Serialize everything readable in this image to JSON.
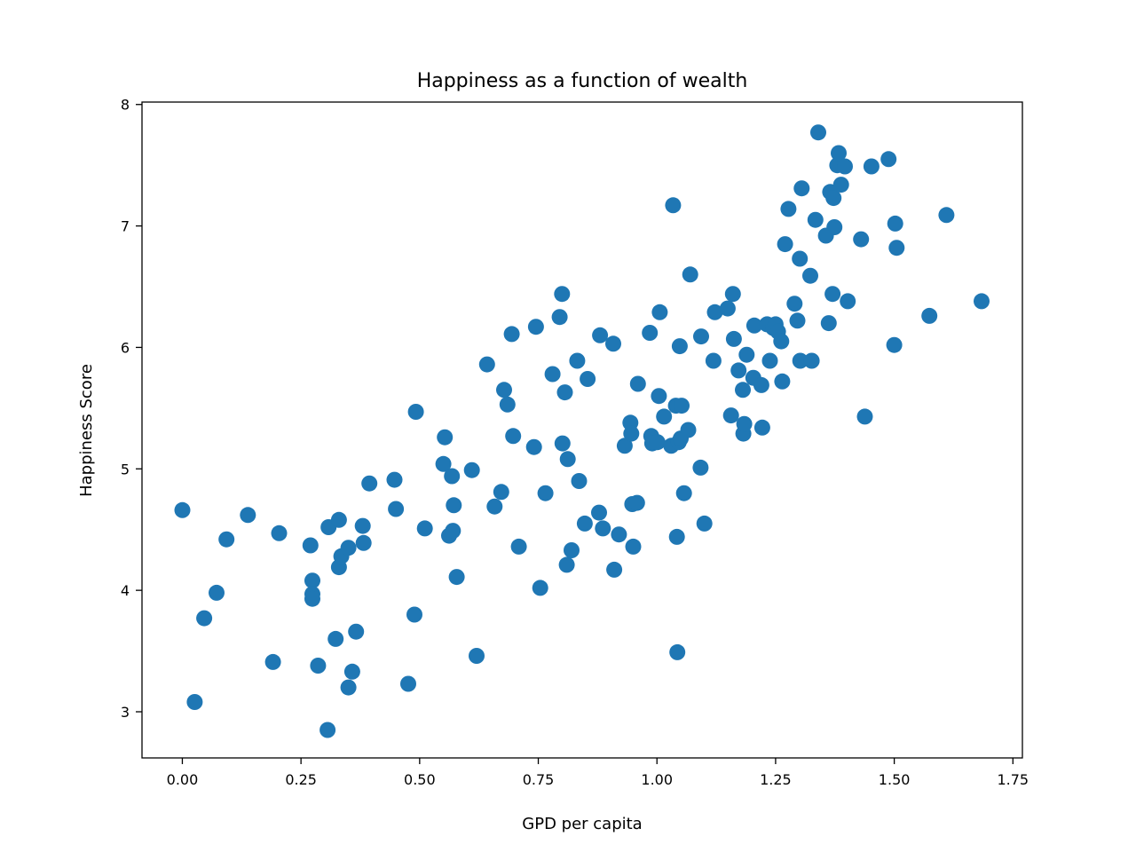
{
  "chart_data": {
    "type": "scatter",
    "title": "Happiness as a function of wealth",
    "xlabel": "GPD per capita",
    "ylabel": "Happiness Score",
    "xlim": [
      -0.085,
      1.77
    ],
    "ylim": [
      2.62,
      8.02
    ],
    "xticks": [
      0.0,
      0.25,
      0.5,
      0.75,
      1.0,
      1.25,
      1.5,
      1.75
    ],
    "xtick_labels": [
      "0.00",
      "0.25",
      "0.50",
      "0.75",
      "1.00",
      "1.25",
      "1.50",
      "1.75"
    ],
    "yticks": [
      3,
      4,
      5,
      6,
      7,
      8
    ],
    "ytick_labels": [
      "3",
      "4",
      "5",
      "6",
      "7",
      "8"
    ],
    "grid": false,
    "marker_color": "#1f77b4",
    "points": [
      [
        0.0,
        4.66
      ],
      [
        0.026,
        3.08
      ],
      [
        0.046,
        3.77
      ],
      [
        0.072,
        3.98
      ],
      [
        0.093,
        4.42
      ],
      [
        0.138,
        4.62
      ],
      [
        0.191,
        3.41
      ],
      [
        0.204,
        4.47
      ],
      [
        0.27,
        4.37
      ],
      [
        0.274,
        4.08
      ],
      [
        0.274,
        3.97
      ],
      [
        0.274,
        3.93
      ],
      [
        0.286,
        3.38
      ],
      [
        0.306,
        2.85
      ],
      [
        0.308,
        4.52
      ],
      [
        0.323,
        3.6
      ],
      [
        0.33,
        4.58
      ],
      [
        0.33,
        4.19
      ],
      [
        0.335,
        4.28
      ],
      [
        0.35,
        4.35
      ],
      [
        0.35,
        3.2
      ],
      [
        0.358,
        3.33
      ],
      [
        0.366,
        3.66
      ],
      [
        0.38,
        4.53
      ],
      [
        0.382,
        4.39
      ],
      [
        0.394,
        4.88
      ],
      [
        0.447,
        4.91
      ],
      [
        0.45,
        4.67
      ],
      [
        0.476,
        3.23
      ],
      [
        0.489,
        3.8
      ],
      [
        0.492,
        5.47
      ],
      [
        0.511,
        4.51
      ],
      [
        0.55,
        5.04
      ],
      [
        0.553,
        5.26
      ],
      [
        0.562,
        4.45
      ],
      [
        0.568,
        4.94
      ],
      [
        0.57,
        4.49
      ],
      [
        0.572,
        4.7
      ],
      [
        0.578,
        4.11
      ],
      [
        0.61,
        4.99
      ],
      [
        0.62,
        3.46
      ],
      [
        0.642,
        5.86
      ],
      [
        0.658,
        4.69
      ],
      [
        0.672,
        4.81
      ],
      [
        0.678,
        5.65
      ],
      [
        0.685,
        5.53
      ],
      [
        0.694,
        6.11
      ],
      [
        0.697,
        5.27
      ],
      [
        0.709,
        4.36
      ],
      [
        0.741,
        5.18
      ],
      [
        0.745,
        6.17
      ],
      [
        0.754,
        4.02
      ],
      [
        0.765,
        4.8
      ],
      [
        0.78,
        5.78
      ],
      [
        0.795,
        6.25
      ],
      [
        0.8,
        6.44
      ],
      [
        0.801,
        5.21
      ],
      [
        0.806,
        5.63
      ],
      [
        0.81,
        4.21
      ],
      [
        0.812,
        5.08
      ],
      [
        0.82,
        4.33
      ],
      [
        0.832,
        5.89
      ],
      [
        0.836,
        4.9
      ],
      [
        0.848,
        4.55
      ],
      [
        0.854,
        5.74
      ],
      [
        0.878,
        4.64
      ],
      [
        0.88,
        6.1
      ],
      [
        0.886,
        4.51
      ],
      [
        0.908,
        6.03
      ],
      [
        0.91,
        4.17
      ],
      [
        0.92,
        4.46
      ],
      [
        0.932,
        5.19
      ],
      [
        0.944,
        5.38
      ],
      [
        0.946,
        5.29
      ],
      [
        0.948,
        4.71
      ],
      [
        0.95,
        4.36
      ],
      [
        0.958,
        4.72
      ],
      [
        0.96,
        5.7
      ],
      [
        0.985,
        6.12
      ],
      [
        0.988,
        5.27
      ],
      [
        0.99,
        5.21
      ],
      [
        1.001,
        5.22
      ],
      [
        1.004,
        5.6
      ],
      [
        1.006,
        6.29
      ],
      [
        1.015,
        5.43
      ],
      [
        1.03,
        5.19
      ],
      [
        1.034,
        7.17
      ],
      [
        1.04,
        5.52
      ],
      [
        1.042,
        4.44
      ],
      [
        1.043,
        3.49
      ],
      [
        1.046,
        5.22
      ],
      [
        1.048,
        6.01
      ],
      [
        1.05,
        5.25
      ],
      [
        1.052,
        5.52
      ],
      [
        1.057,
        4.8
      ],
      [
        1.066,
        5.32
      ],
      [
        1.07,
        6.6
      ],
      [
        1.092,
        5.01
      ],
      [
        1.093,
        6.09
      ],
      [
        1.1,
        4.55
      ],
      [
        1.119,
        5.89
      ],
      [
        1.122,
        6.29
      ],
      [
        1.149,
        6.32
      ],
      [
        1.156,
        5.44
      ],
      [
        1.16,
        6.44
      ],
      [
        1.162,
        6.07
      ],
      [
        1.172,
        5.81
      ],
      [
        1.181,
        5.65
      ],
      [
        1.182,
        5.29
      ],
      [
        1.184,
        5.37
      ],
      [
        1.189,
        5.94
      ],
      [
        1.203,
        5.75
      ],
      [
        1.205,
        6.18
      ],
      [
        1.22,
        5.69
      ],
      [
        1.222,
        5.34
      ],
      [
        1.232,
        6.19
      ],
      [
        1.238,
        5.89
      ],
      [
        1.245,
        6.16
      ],
      [
        1.25,
        6.19
      ],
      [
        1.255,
        6.13
      ],
      [
        1.262,
        6.05
      ],
      [
        1.264,
        5.72
      ],
      [
        1.27,
        6.85
      ],
      [
        1.277,
        7.14
      ],
      [
        1.29,
        6.36
      ],
      [
        1.296,
        6.22
      ],
      [
        1.301,
        6.73
      ],
      [
        1.302,
        5.89
      ],
      [
        1.305,
        7.31
      ],
      [
        1.323,
        6.59
      ],
      [
        1.326,
        5.89
      ],
      [
        1.334,
        7.05
      ],
      [
        1.34,
        7.77
      ],
      [
        1.356,
        6.92
      ],
      [
        1.362,
        6.2
      ],
      [
        1.365,
        7.28
      ],
      [
        1.37,
        6.44
      ],
      [
        1.372,
        7.23
      ],
      [
        1.374,
        6.99
      ],
      [
        1.38,
        7.5
      ],
      [
        1.383,
        7.6
      ],
      [
        1.388,
        7.34
      ],
      [
        1.396,
        7.49
      ],
      [
        1.402,
        6.38
      ],
      [
        1.43,
        6.89
      ],
      [
        1.438,
        5.43
      ],
      [
        1.452,
        7.49
      ],
      [
        1.488,
        7.55
      ],
      [
        1.5,
        6.02
      ],
      [
        1.502,
        7.02
      ],
      [
        1.505,
        6.82
      ],
      [
        1.574,
        6.26
      ],
      [
        1.61,
        7.09
      ],
      [
        1.684,
        6.38
      ]
    ]
  }
}
